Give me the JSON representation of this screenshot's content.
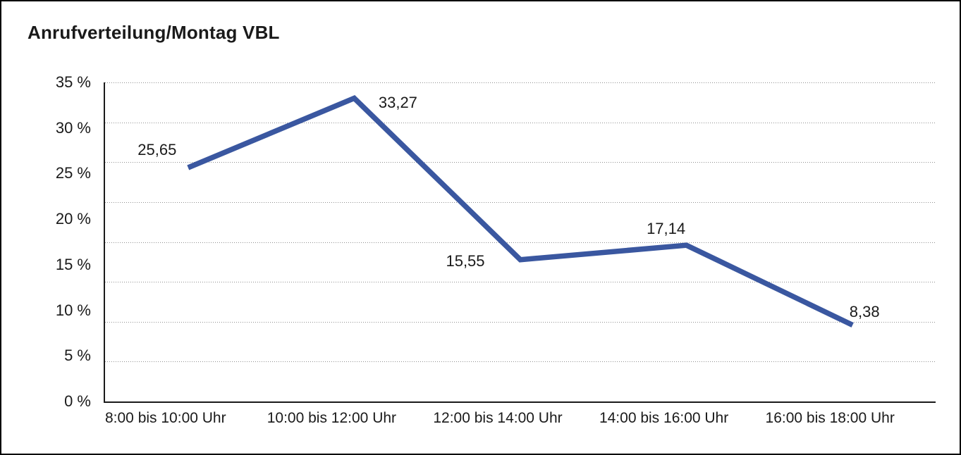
{
  "frame": {
    "background": "#ffffff",
    "border_color": "#000000"
  },
  "chart_data": {
    "type": "line",
    "title": "Anrufverteilung/Montag VBL",
    "categories": [
      "8:00 bis 10:00 Uhr",
      "10:00 bis 12:00 Uhr",
      "12:00 bis 14:00 Uhr",
      "14:00 bis 16:00 Uhr",
      "16:00 bis 18:00 Uhr"
    ],
    "values": [
      25.65,
      33.27,
      15.55,
      17.14,
      8.38
    ],
    "data_labels": [
      "25,65",
      "33,27",
      "15,55",
      "17,14",
      "8,38"
    ],
    "y_ticks": [
      "35 %",
      "30 %",
      "25 %",
      "20 %",
      "15 %",
      "10 %",
      "5 %",
      "0 %"
    ],
    "ylim": [
      0,
      35
    ],
    "xlabel": "",
    "ylabel": "",
    "legend": "none",
    "grid": "horizontal-dotted",
    "line_color": "#3A57A0",
    "grid_color": "#8f8f8f",
    "axis_color": "#1a1a1a",
    "text_color": "#1a1a1a"
  }
}
